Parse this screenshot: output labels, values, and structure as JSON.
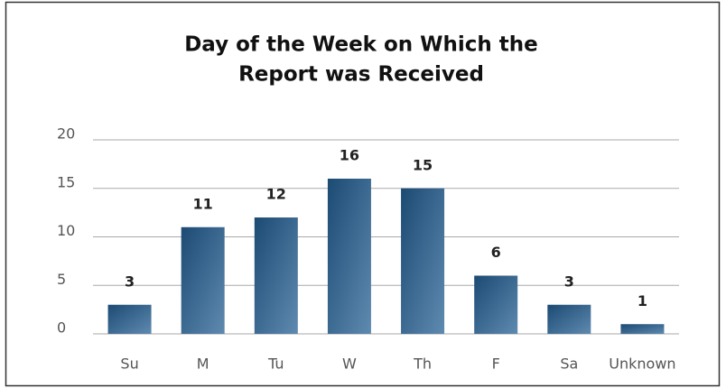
{
  "chart_data": {
    "type": "bar",
    "title": [
      "Day of the Week on Which the",
      "Report was Received"
    ],
    "categories": [
      "Su",
      "M",
      "Tu",
      "W",
      "Th",
      "F",
      "Sa",
      "Unknown"
    ],
    "values": [
      3,
      11,
      12,
      16,
      15,
      6,
      3,
      1
    ],
    "color": "#1b4a73",
    "ylim": [
      0,
      20
    ],
    "yticks": [
      0,
      5,
      10,
      15,
      20
    ],
    "grid": true
  }
}
